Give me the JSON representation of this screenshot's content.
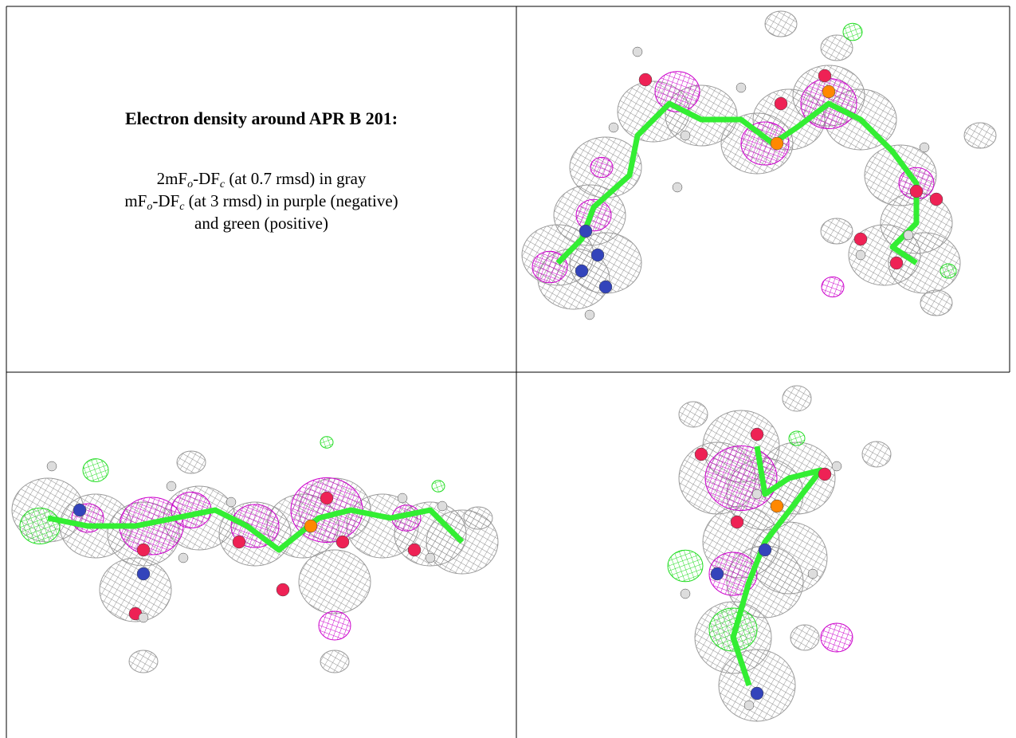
{
  "caption": {
    "title": "Electron density around APR B 201:",
    "lines": [
      [
        {
          "text": "2mF"
        },
        {
          "text": "o",
          "sub": true
        },
        {
          "text": "-DF"
        },
        {
          "text": "c",
          "sub": true
        },
        {
          "text": " (at 0.7 rmsd) in gray"
        }
      ],
      [
        {
          "text": "mF"
        },
        {
          "text": "o",
          "sub": true
        },
        {
          "text": "-DF"
        },
        {
          "text": "c",
          "sub": true
        },
        {
          "text": " (at 3 rmsd) in purple (negative)"
        }
      ],
      [
        {
          "text": "and green (positive)"
        }
      ]
    ]
  }
}
